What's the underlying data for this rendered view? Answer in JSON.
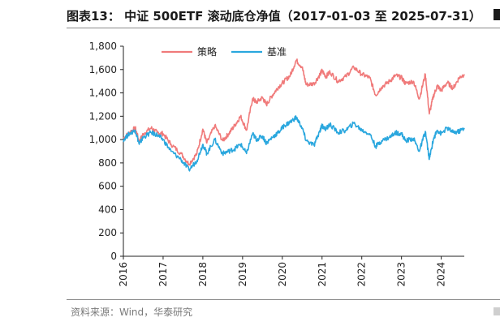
{
  "title": "图表13： 中证 500ETF 滚动底仓净值（2017-01-03 至 2025-07-31）",
  "source": "资料来源：Wind，华泰研究",
  "chart_data": {
    "type": "line",
    "title": "图表13： 中证 500ETF 滚动底仓净值（2017-01-03 至 2025-07-31）",
    "xlabel": "",
    "ylabel": "",
    "xlim": [
      2016,
      2024.58
    ],
    "ylim": [
      0,
      1800
    ],
    "yticks": [
      0,
      200,
      400,
      600,
      800,
      1000,
      1200,
      1400,
      1600,
      1800
    ],
    "ytick_labels": [
      "0",
      "200",
      "400",
      "600",
      "800",
      "1,000",
      "1,200",
      "1,400",
      "1,600",
      "1,800"
    ],
    "xticks": [
      2016,
      2017,
      2018,
      2019,
      2020,
      2021,
      2022,
      2023,
      2024
    ],
    "xtick_labels": [
      "2016",
      "2017",
      "2018",
      "2019",
      "2020",
      "2021",
      "2022",
      "2023",
      "2024"
    ],
    "grid": false,
    "legend_position": "top-center",
    "series": [
      {
        "name": "策略",
        "color": "#f07a7a",
        "x": [
          2016.0,
          2016.15,
          2016.3,
          2016.4,
          2016.5,
          2016.7,
          2016.85,
          2017.0,
          2017.2,
          2017.45,
          2017.65,
          2017.85,
          2018.0,
          2018.1,
          2018.3,
          2018.5,
          2018.65,
          2018.8,
          2018.95,
          2019.1,
          2019.25,
          2019.35,
          2019.5,
          2019.6,
          2019.75,
          2019.9,
          2020.05,
          2020.2,
          2020.35,
          2020.5,
          2020.6,
          2020.8,
          2020.95,
          2021.0,
          2021.1,
          2021.2,
          2021.4,
          2021.6,
          2021.8,
          2022.0,
          2022.2,
          2022.35,
          2022.5,
          2022.7,
          2022.85,
          2023.0,
          2023.1,
          2023.3,
          2023.45,
          2023.6,
          2023.7,
          2023.8,
          2023.9,
          2024.0,
          2024.15,
          2024.3,
          2024.45,
          2024.58
        ],
        "values": [
          1010,
          1060,
          1100,
          980,
          1050,
          1100,
          1060,
          1050,
          960,
          880,
          790,
          880,
          1090,
          970,
          1120,
          990,
          1050,
          1120,
          1200,
          1080,
          1350,
          1320,
          1360,
          1300,
          1380,
          1450,
          1500,
          1550,
          1680,
          1620,
          1470,
          1480,
          1560,
          1590,
          1540,
          1580,
          1500,
          1540,
          1620,
          1560,
          1530,
          1380,
          1450,
          1500,
          1550,
          1530,
          1480,
          1500,
          1350,
          1560,
          1220,
          1370,
          1460,
          1420,
          1490,
          1440,
          1530,
          1560
        ]
      },
      {
        "name": "基准",
        "color": "#2aa7de",
        "x": [
          2016.0,
          2016.15,
          2016.3,
          2016.4,
          2016.5,
          2016.7,
          2016.85,
          2017.0,
          2017.2,
          2017.45,
          2017.65,
          2017.85,
          2018.0,
          2018.1,
          2018.3,
          2018.5,
          2018.65,
          2018.8,
          2018.95,
          2019.1,
          2019.25,
          2019.35,
          2019.5,
          2019.6,
          2019.75,
          2019.9,
          2020.05,
          2020.2,
          2020.35,
          2020.5,
          2020.6,
          2020.8,
          2020.95,
          2021.0,
          2021.1,
          2021.2,
          2021.4,
          2021.6,
          2021.8,
          2022.0,
          2022.2,
          2022.35,
          2022.5,
          2022.7,
          2022.85,
          2023.0,
          2023.1,
          2023.3,
          2023.45,
          2023.6,
          2023.7,
          2023.8,
          2023.9,
          2024.0,
          2024.15,
          2024.3,
          2024.45,
          2024.58
        ],
        "values": [
          1000,
          1050,
          1080,
          960,
          1020,
          1060,
          1040,
          1000,
          900,
          830,
          740,
          820,
          960,
          880,
          1000,
          880,
          900,
          920,
          960,
          880,
          1050,
          1000,
          1030,
          970,
          1020,
          1060,
          1120,
          1150,
          1190,
          1100,
          990,
          950,
          1080,
          1120,
          1090,
          1130,
          1060,
          1080,
          1140,
          1080,
          1050,
          940,
          990,
          1020,
          1060,
          1050,
          990,
          1010,
          900,
          1070,
          830,
          1000,
          1080,
          1050,
          1100,
          1060,
          1070,
          1100
        ]
      }
    ]
  }
}
